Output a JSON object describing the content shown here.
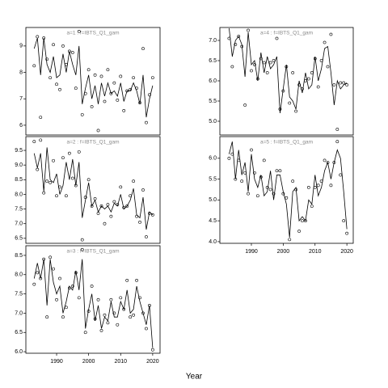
{
  "x_label": "Year",
  "chart_data": [
    {
      "type": "line",
      "title": "a=1 : f=IBTS_Q1_gam",
      "x": [
        1983,
        1984,
        1985,
        1986,
        1987,
        1988,
        1989,
        1990,
        1991,
        1992,
        1993,
        1994,
        1995,
        1996,
        1997,
        1998,
        1999,
        2000,
        2001,
        2002,
        2003,
        2004,
        2005,
        2006,
        2007,
        2008,
        2009,
        2010,
        2011,
        2012,
        2013,
        2014,
        2015,
        2016,
        2017,
        2018,
        2019,
        2020
      ],
      "series": [
        {
          "marker": "line",
          "color": "#000000",
          "values": [
            8.9,
            9.3,
            7.9,
            9.3,
            8.3,
            8.0,
            8.6,
            7.8,
            7.9,
            8.7,
            8.0,
            8.8,
            8.3,
            7.9,
            9.0,
            6.8,
            7.4,
            7.9,
            7.0,
            7.5,
            6.8,
            7.6,
            7.1,
            7.6,
            7.2,
            7.3,
            7.1,
            7.6,
            6.9,
            7.3,
            7.3,
            7.6,
            7.3,
            6.8,
            7.9,
            6.3,
            7.0,
            7.5
          ]
        },
        {
          "marker": "circle",
          "color": "#000000",
          "values": [
            8.25,
            9.35,
            6.3,
            9.3,
            8.5,
            7.8,
            9.05,
            7.55,
            7.35,
            9.0,
            8.3,
            8.8,
            8.75,
            7.4,
            9.55,
            6.4,
            7.2,
            8.1,
            6.7,
            7.9,
            5.8,
            7.85,
            6.9,
            8.1,
            7.2,
            7.6,
            6.95,
            7.85,
            6.55,
            7.3,
            7.35,
            7.8,
            7.4,
            6.85,
            8.9,
            6.1,
            7.15,
            7.8
          ]
        }
      ],
      "xlim": [
        1980.4,
        2022.3
      ],
      "ylim": [
        5.63,
        9.7
      ],
      "yticks": [
        6,
        7,
        8,
        9
      ]
    },
    {
      "type": "line",
      "title": "a=2 : f=IBTS_Q1_gam",
      "x": [
        1983,
        1984,
        1985,
        1986,
        1987,
        1988,
        1989,
        1990,
        1991,
        1992,
        1993,
        1994,
        1995,
        1996,
        1997,
        1998,
        1999,
        2000,
        2001,
        2002,
        2003,
        2004,
        2005,
        2006,
        2007,
        2008,
        2009,
        2010,
        2011,
        2012,
        2013,
        2014,
        2015,
        2016,
        2017,
        2018,
        2019,
        2020
      ],
      "series": [
        {
          "marker": "line",
          "color": "#000000",
          "values": [
            9.4,
            8.9,
            9.4,
            8.1,
            9.6,
            8.5,
            8.4,
            8.7,
            8.0,
            8.3,
            9.1,
            8.5,
            9.2,
            8.3,
            9.1,
            7.2,
            7.8,
            8.4,
            7.6,
            7.8,
            7.4,
            7.6,
            7.5,
            7.6,
            7.4,
            7.7,
            7.6,
            8.0,
            7.5,
            7.6,
            7.8,
            8.2,
            7.3,
            7.2,
            7.9,
            6.8,
            7.4,
            7.3
          ]
        },
        {
          "marker": "circle",
          "color": "#000000",
          "values": [
            9.8,
            8.85,
            9.85,
            8.05,
            8.45,
            8.4,
            9.15,
            7.95,
            8.25,
            9.25,
            7.95,
            9.4,
            8.55,
            8.3,
            9.45,
            6.45,
            7.9,
            8.5,
            7.6,
            7.85,
            7.35,
            7.6,
            7.0,
            7.65,
            7.25,
            7.75,
            7.65,
            8.25,
            7.55,
            7.6,
            7.95,
            8.45,
            7.25,
            7.05,
            8.15,
            6.55,
            7.35,
            7.3
          ]
        }
      ],
      "xlim": [
        1980.4,
        2022.3
      ],
      "ylim": [
        6.33,
        9.97
      ],
      "yticks": [
        {
          "value": 6.5,
          "label": "6.5"
        },
        {
          "value": 7,
          "label": "7.0"
        },
        {
          "value": 7.5,
          "label": "7.5"
        },
        {
          "value": 8,
          "label": "8.0"
        },
        {
          "value": 8.5,
          "label": "8.5"
        },
        {
          "value": 9,
          "label": "9.0"
        },
        {
          "value": 9.5,
          "label": "9.5"
        }
      ]
    },
    {
      "type": "line",
      "title": "a=3 : f=IBTS_Q1_gam",
      "x": [
        1983,
        1984,
        1985,
        1986,
        1987,
        1988,
        1989,
        1990,
        1991,
        1992,
        1993,
        1994,
        1995,
        1996,
        1997,
        1998,
        1999,
        2000,
        2001,
        2002,
        2003,
        2004,
        2005,
        2006,
        2007,
        2008,
        2009,
        2010,
        2011,
        2012,
        2013,
        2014,
        2015,
        2016,
        2017,
        2018,
        2019,
        2020
      ],
      "series": [
        {
          "marker": "line",
          "color": "#000000",
          "values": [
            7.9,
            8.3,
            7.9,
            8.4,
            7.2,
            8.4,
            7.8,
            7.5,
            7.7,
            7.0,
            7.3,
            7.7,
            7.6,
            8.1,
            7.6,
            8.4,
            6.6,
            7.1,
            7.5,
            6.8,
            7.2,
            6.6,
            6.9,
            6.8,
            7.3,
            6.9,
            6.9,
            7.3,
            7.1,
            7.6,
            7.0,
            7.1,
            7.7,
            7.3,
            7.0,
            6.7,
            7.2,
            6.1
          ]
        },
        {
          "marker": "circle",
          "color": "#000000",
          "values": [
            7.75,
            8.05,
            7.9,
            8.4,
            6.9,
            8.45,
            8.15,
            7.35,
            7.9,
            6.9,
            7.15,
            7.65,
            7.7,
            8.05,
            7.4,
            8.65,
            6.5,
            7.05,
            7.7,
            6.85,
            7.35,
            6.55,
            6.95,
            6.75,
            7.35,
            7.0,
            6.7,
            7.4,
            7.1,
            7.85,
            6.9,
            6.95,
            7.85,
            7.4,
            7.0,
            6.6,
            7.2,
            6.05
          ]
        }
      ],
      "xlim": [
        1980.4,
        2022.3
      ],
      "ylim": [
        5.96,
        8.75
      ],
      "yticks": [
        {
          "value": 6,
          "label": "6.0"
        },
        {
          "value": 6.5,
          "label": "6.5"
        },
        {
          "value": 7,
          "label": "7.0"
        },
        {
          "value": 7.5,
          "label": "7.5"
        },
        {
          "value": 8,
          "label": "8.0"
        },
        {
          "value": 8.5,
          "label": "8.5"
        }
      ],
      "xticks": [
        1990,
        2000,
        2010,
        2020
      ]
    },
    {
      "type": "line",
      "title": "a=4 : f=IBTS_Q1_gam",
      "x": [
        1983,
        1984,
        1985,
        1986,
        1987,
        1988,
        1989,
        1990,
        1991,
        1992,
        1993,
        1994,
        1995,
        1996,
        1997,
        1998,
        1999,
        2000,
        2001,
        2002,
        2003,
        2004,
        2005,
        2006,
        2007,
        2008,
        2009,
        2010,
        2011,
        2012,
        2013,
        2014,
        2015,
        2016,
        2017,
        2018,
        2019,
        2020
      ],
      "series": [
        {
          "marker": "line",
          "color": "#000000",
          "values": [
            7.3,
            6.6,
            7.0,
            7.1,
            6.9,
            6.1,
            7.2,
            6.4,
            6.5,
            6.0,
            6.7,
            6.2,
            6.6,
            6.3,
            6.4,
            6.6,
            5.2,
            5.8,
            6.4,
            5.6,
            5.5,
            5.3,
            6.0,
            5.7,
            6.2,
            5.8,
            5.9,
            6.6,
            6.0,
            6.3,
            6.8,
            6.85,
            6.2,
            5.4,
            6.0,
            5.8,
            5.9,
            5.95
          ]
        },
        {
          "marker": "circle",
          "color": "#000000",
          "values": [
            7.05,
            6.35,
            6.9,
            7.1,
            6.85,
            5.4,
            7.25,
            6.25,
            6.4,
            6.05,
            6.55,
            6.45,
            6.2,
            6.45,
            6.5,
            7.05,
            5.3,
            5.75,
            6.35,
            5.45,
            6.2,
            5.25,
            5.9,
            5.8,
            6.0,
            6.05,
            6.2,
            6.55,
            5.85,
            6.5,
            6.95,
            6.35,
            7.15,
            5.9,
            4.8,
            5.95,
            5.95,
            5.9
          ]
        }
      ],
      "xlim": [
        1980.1,
        2022
      ],
      "ylim": [
        4.66,
        7.32
      ],
      "yticks": [
        {
          "value": 5,
          "label": "5.0"
        },
        {
          "value": 5.5,
          "label": "5.5"
        },
        {
          "value": 6,
          "label": "6.0"
        },
        {
          "value": 6.5,
          "label": "6.5"
        },
        {
          "value": 7,
          "label": "7.0"
        }
      ]
    },
    {
      "type": "line",
      "title": "a=5 : f=IBTS_Q1_gam",
      "x": [
        1983,
        1984,
        1985,
        1986,
        1987,
        1988,
        1989,
        1990,
        1991,
        1992,
        1993,
        1994,
        1995,
        1996,
        1997,
        1998,
        1999,
        2000,
        2001,
        2002,
        2003,
        2004,
        2005,
        2006,
        2007,
        2008,
        2009,
        2010,
        2011,
        2012,
        2013,
        2014,
        2015,
        2016,
        2017,
        2018,
        2019,
        2020
      ],
      "series": [
        {
          "marker": "line",
          "color": "#000000",
          "values": [
            6.1,
            6.4,
            5.5,
            6.2,
            5.6,
            5.9,
            5.2,
            6.1,
            5.5,
            5.3,
            5.6,
            5.1,
            5.2,
            5.7,
            5.0,
            5.6,
            5.6,
            5.2,
            4.9,
            4.1,
            5.2,
            5.3,
            4.5,
            4.6,
            4.5,
            5.0,
            4.9,
            5.6,
            5.1,
            5.3,
            5.7,
            5.9,
            5.5,
            5.9,
            6.2,
            6.0,
            5.2,
            4.3
          ]
        },
        {
          "marker": "circle",
          "color": "#000000",
          "values": [
            6.0,
            6.1,
            5.5,
            5.95,
            5.45,
            5.65,
            5.15,
            6.2,
            5.65,
            5.1,
            5.55,
            5.95,
            5.3,
            5.25,
            5.15,
            5.7,
            5.7,
            5.15,
            5.05,
            4.05,
            5.45,
            5.25,
            4.25,
            4.5,
            4.5,
            5.3,
            4.85,
            5.3,
            5.35,
            5.45,
            5.95,
            5.9,
            5.35,
            5.9,
            6.4,
            5.6,
            4.5,
            4.2
          ]
        }
      ],
      "xlim": [
        1980.1,
        2022
      ],
      "ylim": [
        3.96,
        6.52
      ],
      "yticks": [
        {
          "value": 4,
          "label": "4.0"
        },
        {
          "value": 4.5,
          "label": "4.5"
        },
        {
          "value": 5,
          "label": "5.0"
        },
        {
          "value": 5.5,
          "label": "5.5"
        },
        {
          "value": 6,
          "label": "6.0"
        }
      ],
      "xticks": [
        1990,
        2000,
        2010,
        2020
      ]
    }
  ]
}
